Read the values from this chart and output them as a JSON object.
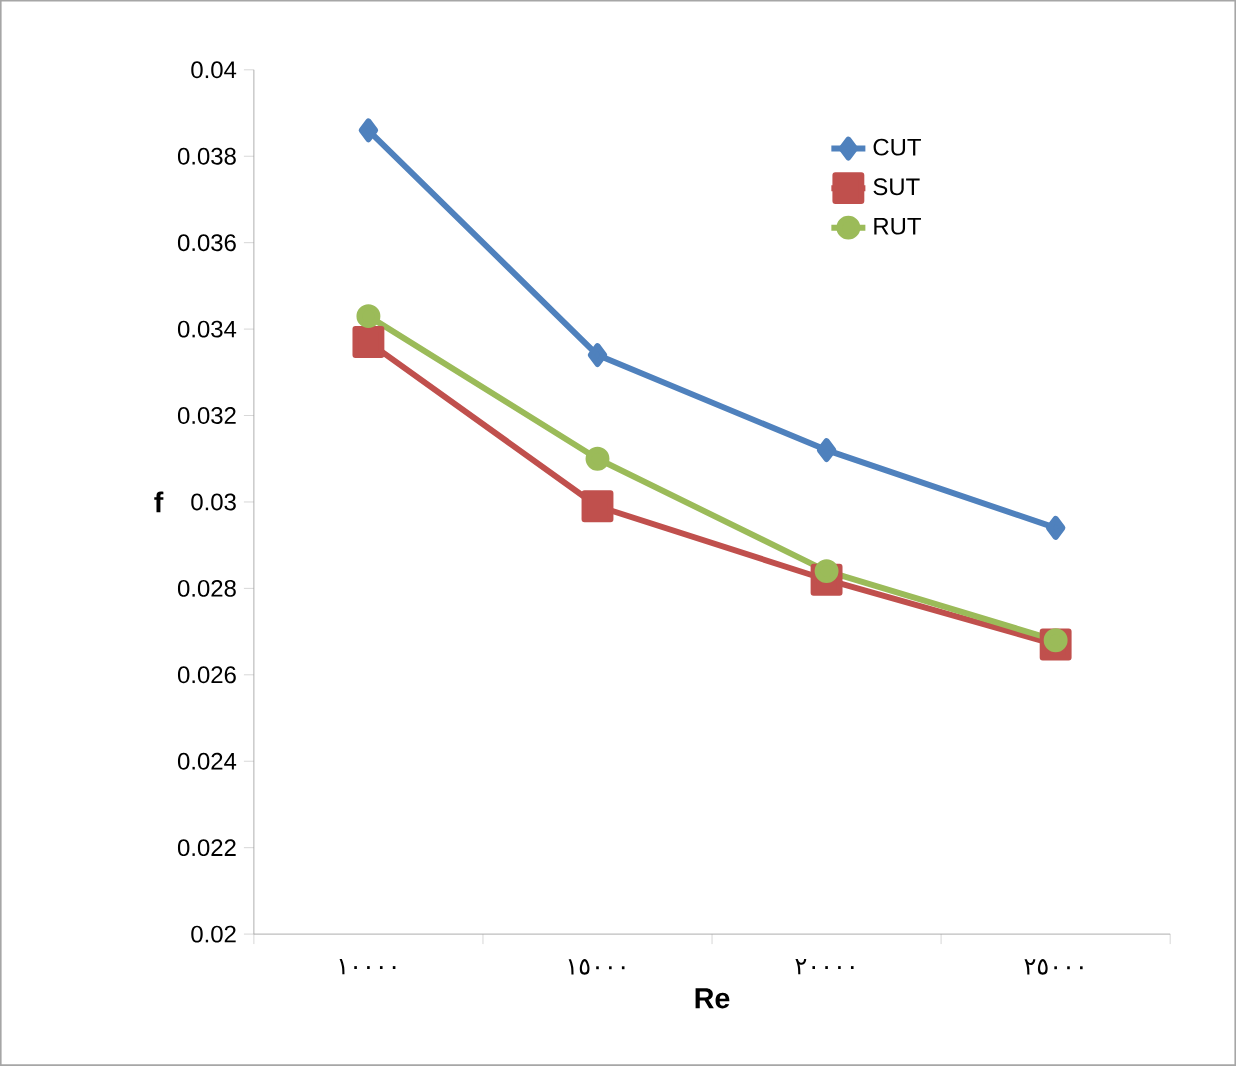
{
  "chart_data": {
    "type": "line",
    "xlabel": "Re",
    "ylabel": "f",
    "categories": [
      "١٠٠٠٠",
      "١٥٠٠٠",
      "٢٠٠٠٠",
      "٢٥٠٠٠"
    ],
    "series": [
      {
        "name": "CUT",
        "color": "#4f81bd",
        "marker": "diamond",
        "values": [
          0.0386,
          0.0334,
          0.0312,
          0.0294
        ]
      },
      {
        "name": "SUT",
        "color": "#c0504d",
        "marker": "square",
        "values": [
          0.0337,
          0.0299,
          0.0282,
          0.0267
        ]
      },
      {
        "name": "RUT",
        "color": "#9bbb59",
        "marker": "circle",
        "values": [
          0.0343,
          0.031,
          0.0284,
          0.0268
        ]
      }
    ],
    "ylim": [
      0.02,
      0.04
    ],
    "yticks": [
      0.02,
      0.022,
      0.024,
      0.026,
      0.028,
      0.03,
      0.032,
      0.034,
      0.036,
      0.038,
      0.04
    ],
    "grid": false,
    "legend": "top right",
    "line_style": "solid"
  }
}
